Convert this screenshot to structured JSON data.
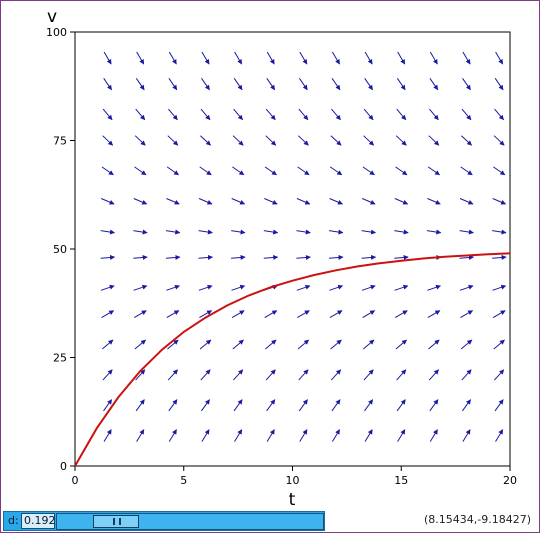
{
  "chart_data": {
    "type": "line",
    "subtype": "direction-field",
    "xlabel": "t",
    "ylabel": "v",
    "xlim": [
      0,
      20
    ],
    "ylim": [
      0,
      100
    ],
    "x_ticks": [
      0,
      5,
      10,
      15,
      20
    ],
    "y_ticks": [
      0,
      25,
      50,
      75,
      100
    ],
    "grid": false,
    "field": {
      "equation": "dv/dt = 0.192 * (50 - v)",
      "t_values": [
        1.5,
        3,
        4.5,
        6,
        7.5,
        9,
        10.5,
        12,
        13.5,
        15,
        16.5,
        18,
        19.5
      ],
      "v_values": [
        7,
        14,
        21,
        28,
        35,
        41,
        48,
        54,
        61,
        68,
        75,
        81,
        88,
        94
      ],
      "color": "#1a1aa0"
    },
    "series": [
      {
        "x": [
          0,
          1,
          2,
          3,
          4,
          5,
          6,
          7,
          8,
          9,
          10,
          11,
          12,
          13,
          14,
          15,
          16,
          17,
          18,
          19,
          20
        ],
        "y": [
          0,
          8.7,
          15.9,
          21.9,
          26.8,
          30.9,
          34.2,
          37.0,
          39.3,
          41.2,
          42.7,
          44.0,
          45.1,
          46.0,
          46.7,
          47.3,
          47.8,
          48.2,
          48.5,
          48.8,
          49.0
        ],
        "color": "#cc1111"
      }
    ]
  },
  "controls": {
    "slider_label": "d:",
    "slider_value": "0.192",
    "slider_fraction": 0.16,
    "coordinate_readout": "(8.15434,-9.18427)"
  }
}
